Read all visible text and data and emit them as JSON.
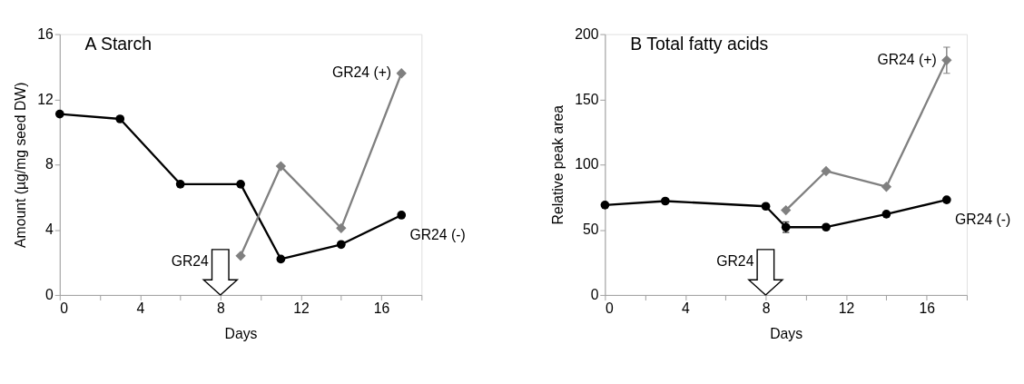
{
  "chart_data": [
    {
      "type": "line",
      "title": "A   Starch",
      "xlabel": "Days",
      "ylabel": "Amount (µg/mg seed DW)",
      "xlim": [
        0,
        18
      ],
      "xticks": [
        0,
        {
          "value": 2,
          "label": null
        },
        4,
        {
          "value": 6,
          "label": null
        },
        8,
        {
          "value": 10,
          "label": null
        },
        12,
        {
          "value": 14,
          "label": null
        },
        16,
        {
          "value": 18,
          "label": null
        }
      ],
      "ylim": [
        0,
        16
      ],
      "yticks": [
        0,
        4,
        8,
        12,
        16
      ],
      "grid": false,
      "series": [
        {
          "name": "GR24 (-)",
          "color": "#000000",
          "marker": "circle",
          "x": [
            0,
            3,
            6,
            9,
            11,
            14,
            17
          ],
          "values": [
            11.1,
            10.8,
            6.8,
            6.8,
            2.2,
            3.1,
            4.9
          ]
        },
        {
          "name": "GR24 (+)",
          "color": "#808080",
          "marker": "diamond",
          "x": [
            9,
            11,
            14,
            17
          ],
          "values": [
            2.4,
            7.9,
            4.1,
            13.6
          ]
        }
      ],
      "annotations": [
        "GR24"
      ]
    },
    {
      "type": "line",
      "title": "B   Total fatty acids",
      "xlabel": "Days",
      "ylabel": "Relative peak area",
      "xlim": [
        0,
        18
      ],
      "xticks": [
        0,
        {
          "value": 2,
          "label": null
        },
        4,
        {
          "value": 6,
          "label": null
        },
        8,
        {
          "value": 10,
          "label": null
        },
        12,
        {
          "value": 14,
          "label": null
        },
        16,
        {
          "value": 18,
          "label": null
        }
      ],
      "ylim": [
        0,
        200
      ],
      "yticks": [
        0,
        50,
        100,
        150,
        200
      ],
      "grid": false,
      "series": [
        {
          "name": "GR24 (-)",
          "color": "#000000",
          "marker": "circle",
          "x": [
            0,
            3,
            8,
            9,
            11,
            14,
            17
          ],
          "values": [
            69,
            72,
            68,
            52,
            52,
            62,
            73
          ],
          "errors": [
            null,
            null,
            null,
            4,
            null,
            null,
            null
          ]
        },
        {
          "name": "GR24 (+)",
          "color": "#808080",
          "marker": "diamond",
          "x": [
            9,
            11,
            14,
            17
          ],
          "values": [
            65,
            95,
            83,
            180
          ],
          "errors": [
            null,
            null,
            null,
            10
          ]
        }
      ],
      "annotations": [
        "GR24"
      ]
    }
  ]
}
